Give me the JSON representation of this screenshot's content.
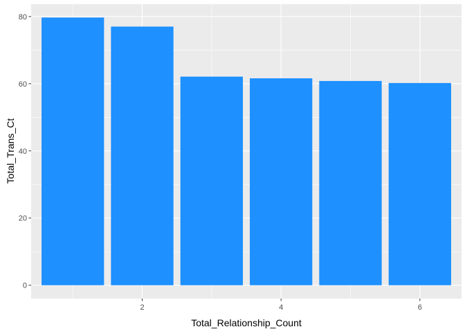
{
  "chart_data": {
    "type": "bar",
    "x": [
      1,
      2,
      3,
      4,
      5,
      6
    ],
    "values": [
      79.7,
      77.0,
      62.1,
      61.6,
      60.8,
      60.2
    ],
    "xlabel": "Total_Relationship_Count",
    "ylabel": "Total_Trans_Ct",
    "xlim": [
      0.4,
      6.6
    ],
    "ylim": [
      -3.98,
      83.68
    ],
    "x_ticks": [
      2,
      4,
      6
    ],
    "y_ticks": [
      0,
      20,
      40,
      60,
      80
    ],
    "grid": true,
    "legend": "none",
    "colors": {
      "bar": "#1E90FF",
      "panel_background": "#EBEBEB",
      "grid": "#FFFFFF",
      "tick_label": "#4D4D4D",
      "tick_mark": "#333333"
    }
  }
}
